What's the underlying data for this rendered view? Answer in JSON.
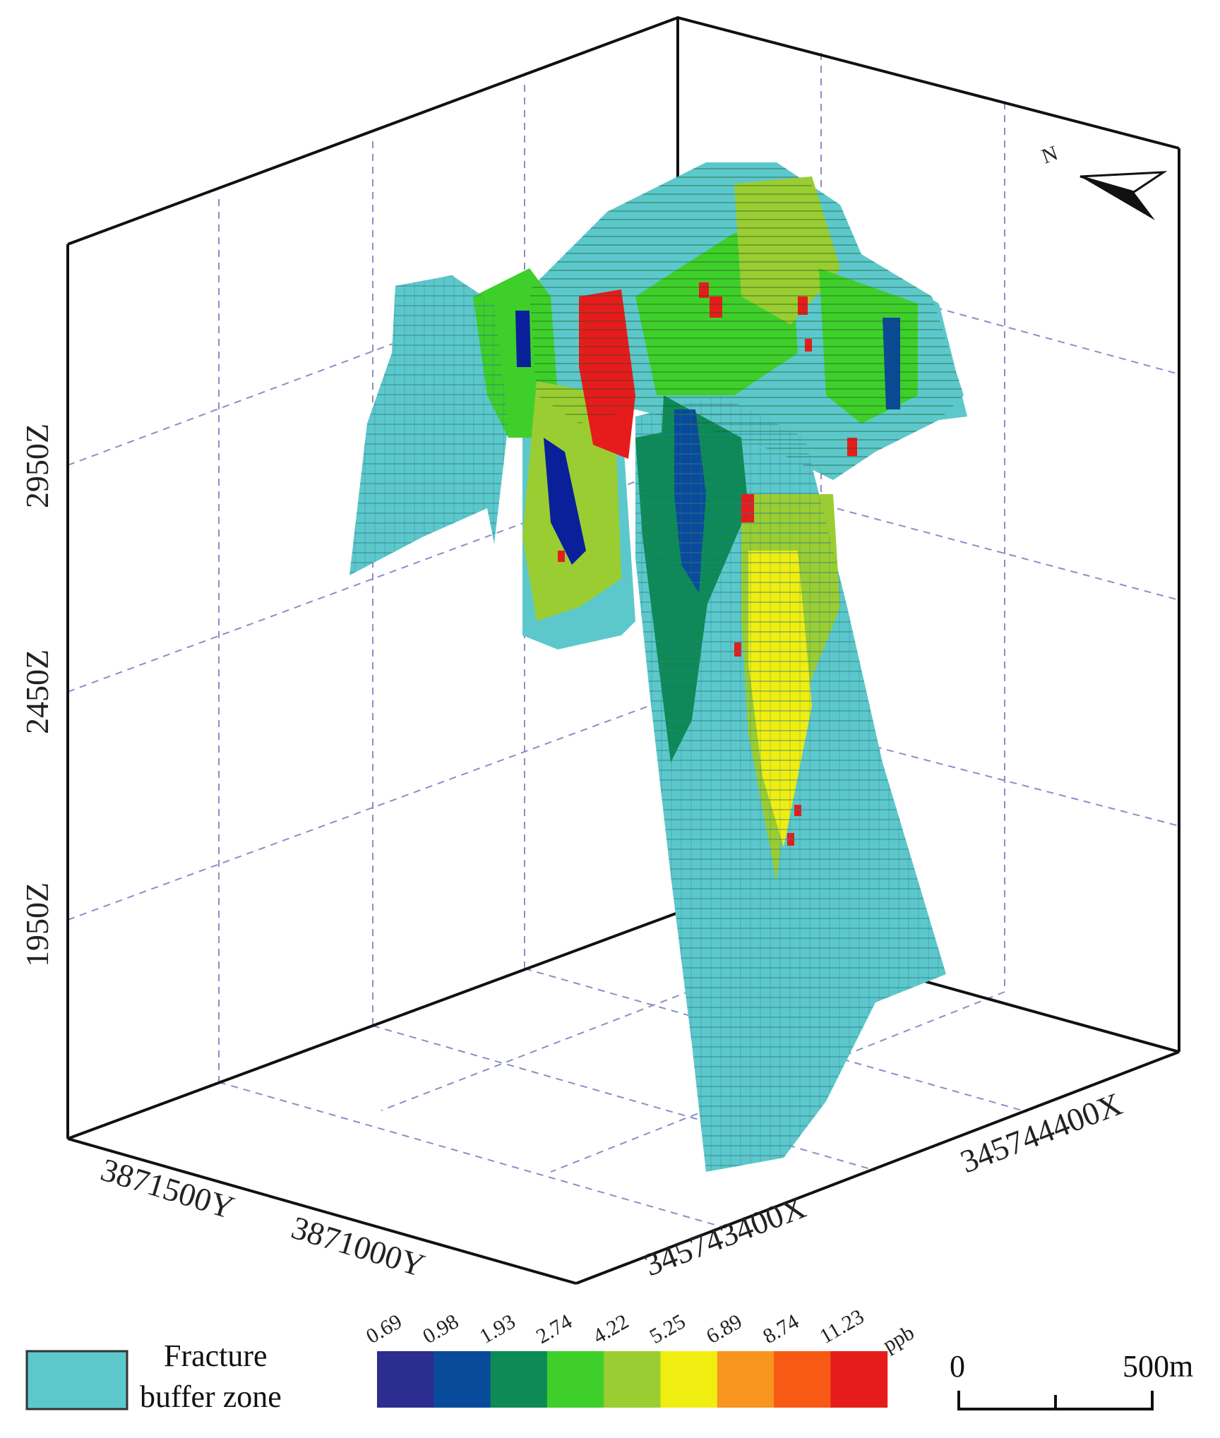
{
  "axes": {
    "z_labels": [
      "2950Z",
      "2450Z",
      "1950Z"
    ],
    "y_labels": [
      "3871500Y",
      "3871000Y"
    ],
    "x_labels": [
      "345743400X",
      "345744400X"
    ]
  },
  "north_label": "N",
  "legend": {
    "fracture_label_line1": "Fracture",
    "fracture_label_line2": "buffer zone",
    "fracture_color": "#5cc8cb",
    "unit": "ppb",
    "ticks": [
      "0.69",
      "0.98",
      "1.93",
      "2.74",
      "4.22",
      "5.25",
      "6.89",
      "8.74",
      "11.23"
    ],
    "colors": [
      "#2b2d8f",
      "#0a4a9a",
      "#0d8a55",
      "#3fcf2a",
      "#9acd32",
      "#f0ee10",
      "#f7951e",
      "#f65a14",
      "#e61c1c"
    ]
  },
  "scalebar": {
    "start": "0",
    "end": "500m"
  }
}
